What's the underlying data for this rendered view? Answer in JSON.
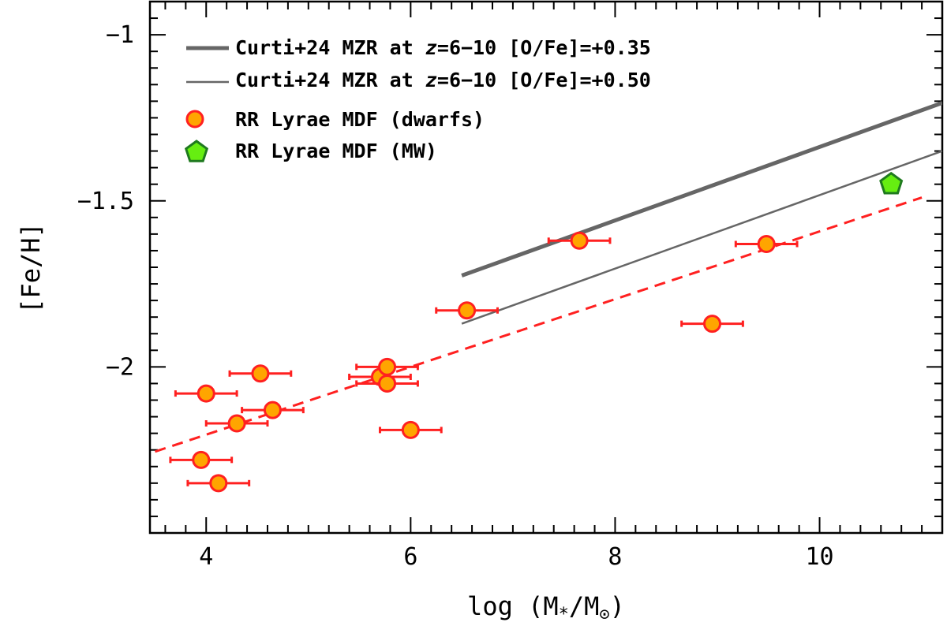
{
  "chart_data": {
    "type": "scatter",
    "xlabel_prefix": "log (M",
    "xlabel_sub1": "*",
    "xlabel_mid": "/M",
    "xlabel_sub2": "⊙",
    "xlabel_suffix": ")",
    "ylabel": "[Fe/H]",
    "xlim": [
      3.45,
      11.2
    ],
    "ylim": [
      -2.5,
      -0.9
    ],
    "xticks_major": [
      4,
      6,
      8,
      10
    ],
    "xtick_labels": [
      "4",
      "6",
      "8",
      "10"
    ],
    "yticks_major": [
      -1,
      -1.5,
      -2
    ],
    "ytick_labels": [
      "−1",
      "−1.5",
      "−2"
    ],
    "legend": {
      "position": "top-left",
      "entry1_prefix": "Curti+24 MZR at ",
      "entry1_z": "z",
      "entry1_suffix": "=6−10 [O/Fe]=+0.35",
      "entry2_prefix": "Curti+24 MZR at ",
      "entry2_z": "z",
      "entry2_suffix": "=6−10 [O/Fe]=+0.50",
      "entry3": "RR Lyrae MDF (dwarfs)",
      "entry4": "RR Lyrae MDF (MW)"
    },
    "series": [
      {
        "name": "Curti+24 MZR at z=6-10 [O/Fe]=+0.35",
        "kind": "line",
        "color": "#666666",
        "width": "thick",
        "x": [
          6.5,
          11.2
        ],
        "y": [
          -1.725,
          -1.205
        ]
      },
      {
        "name": "Curti+24 MZR at z=6-10 [O/Fe]=+0.50",
        "kind": "line",
        "color": "#666666",
        "width": "thin",
        "x": [
          6.5,
          11.2
        ],
        "y": [
          -1.87,
          -1.35
        ]
      },
      {
        "name": "Fit",
        "kind": "dashed-line",
        "color": "#ff2020",
        "x": [
          3.5,
          11.0
        ],
        "y": [
          -2.255,
          -1.49
        ]
      },
      {
        "name": "RR Lyrae MDF (dwarfs)",
        "kind": "points",
        "color": "#ff2020",
        "fill": "#ffa500",
        "points": [
          {
            "x": 3.95,
            "y": -2.28,
            "xerr": 0.3
          },
          {
            "x": 4.12,
            "y": -2.35,
            "xerr": 0.3
          },
          {
            "x": 4.0,
            "y": -2.08,
            "xerr": 0.3
          },
          {
            "x": 4.3,
            "y": -2.17,
            "xerr": 0.3
          },
          {
            "x": 4.53,
            "y": -2.02,
            "xerr": 0.3
          },
          {
            "x": 4.65,
            "y": -2.13,
            "xerr": 0.3
          },
          {
            "x": 5.7,
            "y": -2.03,
            "xerr": 0.3
          },
          {
            "x": 5.77,
            "y": -2.0,
            "xerr": 0.3
          },
          {
            "x": 5.77,
            "y": -2.05,
            "xerr": 0.3
          },
          {
            "x": 6.0,
            "y": -2.19,
            "xerr": 0.3
          },
          {
            "x": 6.55,
            "y": -1.83,
            "xerr": 0.3
          },
          {
            "x": 7.65,
            "y": -1.62,
            "xerr": 0.3
          },
          {
            "x": 8.95,
            "y": -1.87,
            "xerr": 0.3
          },
          {
            "x": 9.48,
            "y": -1.63,
            "xerr": 0.3
          }
        ]
      },
      {
        "name": "RR Lyrae MDF (MW)",
        "kind": "points",
        "color": "#1f7a1f",
        "fill": "#66ee11",
        "points": [
          {
            "x": 10.7,
            "y": -1.45
          }
        ]
      }
    ]
  }
}
